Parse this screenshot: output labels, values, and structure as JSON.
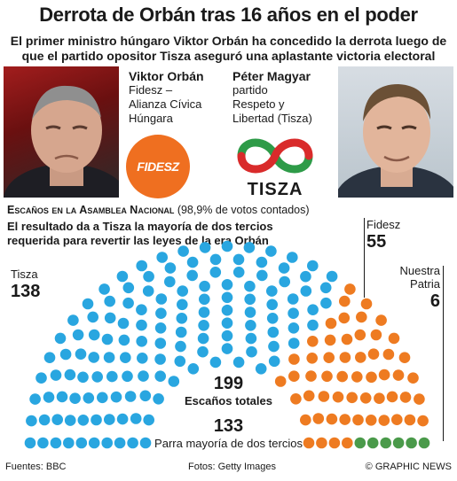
{
  "header": {
    "title": "Derrota de Orbán tras 16 años en el poder",
    "subtitle": "El primer ministro húngaro Viktor Orbán ha concedido la derrota luego de que el partido opositor Tisza aseguró una aplastante victoria electoral"
  },
  "candidates": {
    "left": {
      "name": "Viktor Orbán",
      "party_lines": [
        "Fidesz –",
        "Alianza Cívica",
        "Húngara"
      ],
      "logo_text": "FIDESZ"
    },
    "right": {
      "name": "Péter Magyar",
      "party_lines": [
        "partido",
        "Respeto y",
        "Libertad (Tisza)"
      ],
      "logo_text": "TISZA"
    }
  },
  "section": {
    "title": "Escaños en la Asamblea Nacional",
    "note_count": "(98,9% de votos contados)",
    "note_lines": [
      "El resultado da a Tisza la mayoría de dos tercios",
      "requerida para revertir las leyes de la era Orbán"
    ]
  },
  "parties": [
    {
      "name": "Tisza",
      "seats": "138",
      "color": "#29a6e0"
    },
    {
      "name": "Fidesz",
      "seats": "55",
      "color": "#ee7b21"
    },
    {
      "name_lines": [
        "Nuestra",
        "Patria"
      ],
      "seats": "6",
      "color": "#4a9a4a"
    }
  ],
  "chart_data": {
    "type": "parliament",
    "total_seats": 199,
    "series": [
      {
        "name": "Tisza",
        "values": [
          138
        ],
        "color": "#29a6e0"
      },
      {
        "name": "Fidesz",
        "values": [
          55
        ],
        "color": "#ee7b21"
      },
      {
        "name": "Nuestra Patria",
        "values": [
          6
        ],
        "color": "#4a9a4a"
      }
    ],
    "two_thirds_majority": 133
  },
  "totals": {
    "total_value": "199",
    "total_label": "Escaños totales",
    "majority_value": "133",
    "majority_label": "Parra mayoría de dos tercios"
  },
  "footer": {
    "sources": "Fuentes: BBC",
    "photos": "Fotos: Getty Images",
    "credit": "© GRAPHIC NEWS"
  }
}
